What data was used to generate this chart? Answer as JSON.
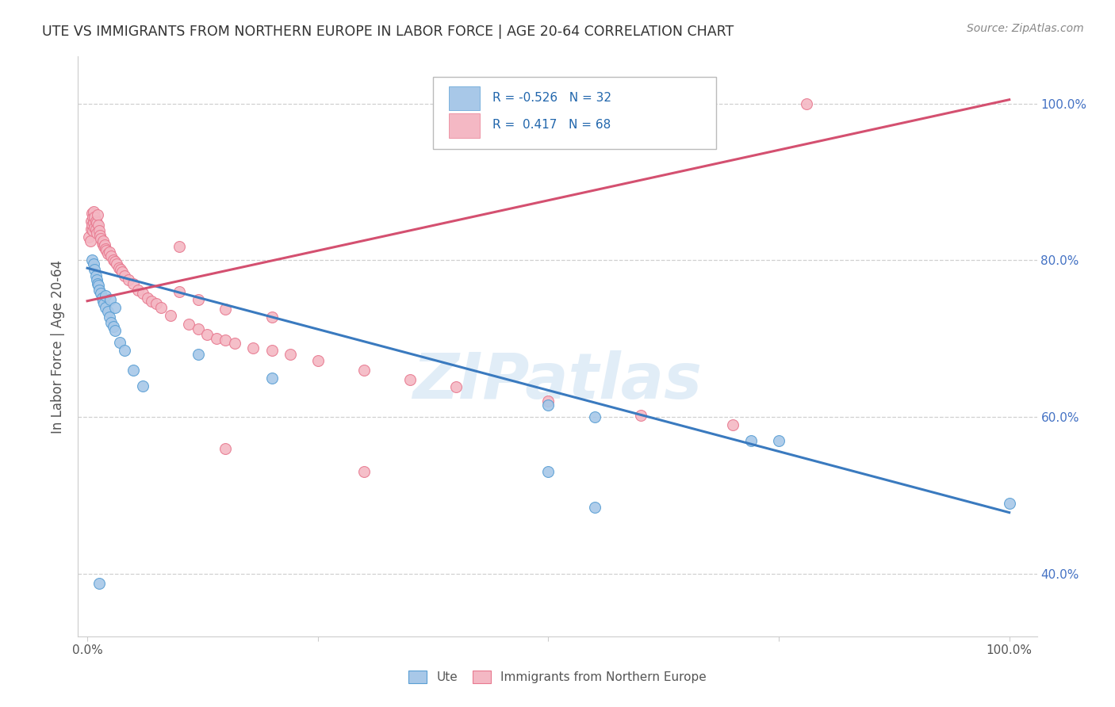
{
  "title": "UTE VS IMMIGRANTS FROM NORTHERN EUROPE IN LABOR FORCE | AGE 20-64 CORRELATION CHART",
  "source": "Source: ZipAtlas.com",
  "ylabel": "In Labor Force | Age 20-64",
  "legend_label1": "Ute",
  "legend_label2": "Immigrants from Northern Europe",
  "R_ute": -0.526,
  "N_ute": 32,
  "R_imm": 0.417,
  "N_imm": 68,
  "blue_color": "#a8c8e8",
  "blue_edge_color": "#5a9fd4",
  "blue_line_color": "#3a7abf",
  "pink_color": "#f4b8c4",
  "pink_edge_color": "#e87a90",
  "pink_line_color": "#d45070",
  "background_color": "#ffffff",
  "grid_color": "#d0d0d0",
  "ute_x": [
    0.005,
    0.007,
    0.008,
    0.009,
    0.01,
    0.011,
    0.012,
    0.013,
    0.015,
    0.016,
    0.017,
    0.018,
    0.02,
    0.022,
    0.024,
    0.026,
    0.028,
    0.03,
    0.035,
    0.04,
    0.05,
    0.06,
    0.02,
    0.025,
    0.03,
    0.12,
    0.2,
    0.5,
    0.55,
    0.72,
    0.75,
    1.0
  ],
  "ute_y": [
    0.8,
    0.795,
    0.788,
    0.78,
    0.775,
    0.77,
    0.768,
    0.762,
    0.758,
    0.752,
    0.748,
    0.745,
    0.74,
    0.735,
    0.728,
    0.72,
    0.715,
    0.71,
    0.695,
    0.685,
    0.66,
    0.64,
    0.755,
    0.75,
    0.74,
    0.68,
    0.65,
    0.615,
    0.6,
    0.57,
    0.57,
    0.49
  ],
  "imm_x": [
    0.002,
    0.003,
    0.004,
    0.004,
    0.005,
    0.005,
    0.006,
    0.006,
    0.007,
    0.007,
    0.008,
    0.008,
    0.009,
    0.009,
    0.01,
    0.01,
    0.011,
    0.012,
    0.013,
    0.014,
    0.015,
    0.016,
    0.017,
    0.018,
    0.019,
    0.02,
    0.021,
    0.022,
    0.024,
    0.026,
    0.028,
    0.03,
    0.032,
    0.034,
    0.036,
    0.038,
    0.04,
    0.045,
    0.05,
    0.055,
    0.06,
    0.065,
    0.07,
    0.075,
    0.08,
    0.09,
    0.1,
    0.11,
    0.12,
    0.13,
    0.14,
    0.15,
    0.16,
    0.18,
    0.2,
    0.22,
    0.25,
    0.3,
    0.35,
    0.4,
    0.5,
    0.6,
    0.7,
    0.1,
    0.12,
    0.15,
    0.2,
    0.78
  ],
  "imm_y": [
    0.83,
    0.825,
    0.85,
    0.84,
    0.86,
    0.845,
    0.855,
    0.838,
    0.862,
    0.848,
    0.855,
    0.842,
    0.85,
    0.84,
    0.848,
    0.835,
    0.858,
    0.845,
    0.838,
    0.832,
    0.828,
    0.822,
    0.825,
    0.818,
    0.82,
    0.815,
    0.812,
    0.808,
    0.81,
    0.805,
    0.8,
    0.798,
    0.795,
    0.79,
    0.788,
    0.785,
    0.78,
    0.775,
    0.77,
    0.762,
    0.758,
    0.752,
    0.748,
    0.745,
    0.74,
    0.73,
    0.818,
    0.718,
    0.712,
    0.705,
    0.7,
    0.698,
    0.694,
    0.688,
    0.685,
    0.68,
    0.672,
    0.66,
    0.648,
    0.638,
    0.62,
    0.602,
    0.59,
    0.76,
    0.75,
    0.738,
    0.728,
    1.0
  ],
  "ute_line_x0": 0.0,
  "ute_line_y0": 0.79,
  "ute_line_x1": 1.0,
  "ute_line_y1": 0.478,
  "imm_line_x0": 0.0,
  "imm_line_y0": 0.748,
  "imm_line_x1": 1.0,
  "imm_line_y1": 1.005,
  "ytick_vals": [
    0.4,
    0.6,
    0.8,
    1.0
  ],
  "ytick_labels": [
    "40.0%",
    "60.0%",
    "80.0%",
    "100.0%"
  ],
  "ymin": 0.32,
  "ymax": 1.06,
  "xmin": -0.01,
  "xmax": 1.03
}
